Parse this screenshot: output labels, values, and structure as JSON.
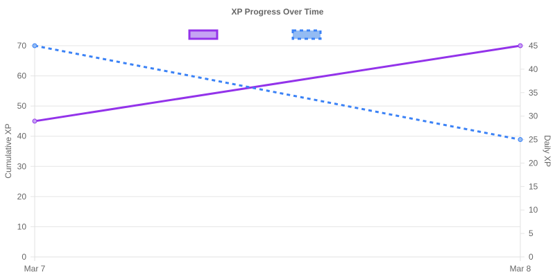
{
  "chart_data": {
    "type": "line",
    "title": "XP Progress Over Time",
    "x": [
      "Mar 7",
      "Mar 8"
    ],
    "legend": {
      "position": "top",
      "labels_shown": false
    },
    "grid": true,
    "series": [
      {
        "axis": "left",
        "values": [
          45,
          70
        ],
        "color": "#9333ea",
        "fill": "#c5a3f3",
        "line_style": "solid"
      },
      {
        "axis": "right",
        "values": [
          45,
          25
        ],
        "color": "#3b82f6",
        "fill": "#93bbf3",
        "line_style": "dashed"
      }
    ],
    "y_left": {
      "label": "Cumulative XP",
      "ylim": [
        0,
        70
      ],
      "ticks": [
        0,
        10,
        20,
        30,
        40,
        50,
        60,
        70
      ]
    },
    "y_right": {
      "label": "Daily XP",
      "ylim": [
        0,
        45
      ],
      "ticks": [
        0,
        5,
        10,
        15,
        20,
        25,
        30,
        35,
        40,
        45
      ]
    }
  }
}
